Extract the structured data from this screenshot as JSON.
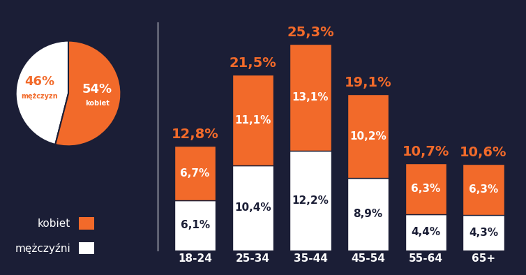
{
  "chart_data": [
    {
      "type": "pie",
      "categories": [
        "mężczyzn",
        "kobiet"
      ],
      "values": [
        46,
        54
      ],
      "value_labels": [
        "46%",
        "54%"
      ],
      "colors": [
        "#ffffff",
        "#f26a2a"
      ],
      "data_labels": true
    },
    {
      "type": "bar",
      "stacked": true,
      "categories": [
        "18-24",
        "25-34",
        "35-44",
        "45-54",
        "55-64",
        "65+"
      ],
      "series": [
        {
          "name": "mężczyźni",
          "color": "#ffffff",
          "values": [
            6.1,
            10.4,
            12.2,
            8.9,
            4.4,
            4.3
          ],
          "value_labels": [
            "6,1%",
            "10,4%",
            "12,2%",
            "8,9%",
            "4,4%",
            "4,3%"
          ]
        },
        {
          "name": "kobiet",
          "color": "#f26a2a",
          "values": [
            6.7,
            11.1,
            13.1,
            10.2,
            6.3,
            6.3
          ],
          "value_labels": [
            "6,7%",
            "11,1%",
            "13,1%",
            "10,2%",
            "6,3%",
            "6,3%"
          ]
        }
      ],
      "totals": [
        12.8,
        21.5,
        25.3,
        19.1,
        10.7,
        10.6
      ],
      "total_labels": [
        "12,8%",
        "21,5%",
        "25,3%",
        "19,1%",
        "10,7%",
        "10,6%"
      ],
      "ylim": [
        0,
        28
      ],
      "yticks": [],
      "data_labels": true,
      "tick_labels": "x",
      "legend": "lower left"
    }
  ]
}
